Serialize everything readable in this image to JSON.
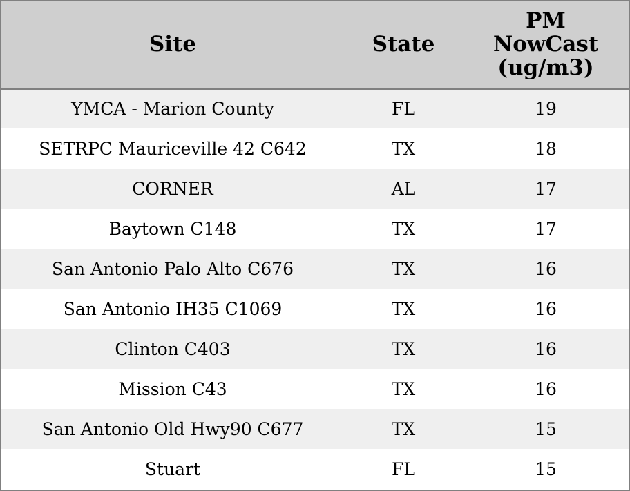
{
  "chart_data": {
    "type": "table",
    "columns": [
      "Site",
      "State",
      "PM NowCast (ug/m3)"
    ],
    "header_lines": {
      "site": "Site",
      "state": "State",
      "pm": [
        "PM",
        "NowCast",
        "(ug/m3)"
      ]
    },
    "rows": [
      {
        "site": "YMCA - Marion County",
        "state": "FL",
        "pm": "19"
      },
      {
        "site": "SETRPC Mauriceville 42 C642",
        "state": "TX",
        "pm": "18"
      },
      {
        "site": "CORNER",
        "state": "AL",
        "pm": "17"
      },
      {
        "site": "Baytown C148",
        "state": "TX",
        "pm": "17"
      },
      {
        "site": "San Antonio Palo Alto C676",
        "state": "TX",
        "pm": "16"
      },
      {
        "site": "San Antonio IH35 C1069",
        "state": "TX",
        "pm": "16"
      },
      {
        "site": "Clinton C403",
        "state": "TX",
        "pm": "16"
      },
      {
        "site": "Mission C43",
        "state": "TX",
        "pm": "16"
      },
      {
        "site": "San Antonio Old Hwy90 C677",
        "state": "TX",
        "pm": "15"
      },
      {
        "site": "Stuart",
        "state": "FL",
        "pm": "15"
      }
    ]
  },
  "colors": {
    "header_background": "#cfcfcf",
    "row_shaded": "#efefef",
    "row_plain": "#ffffff",
    "border": "#808080",
    "text": "#000000"
  }
}
